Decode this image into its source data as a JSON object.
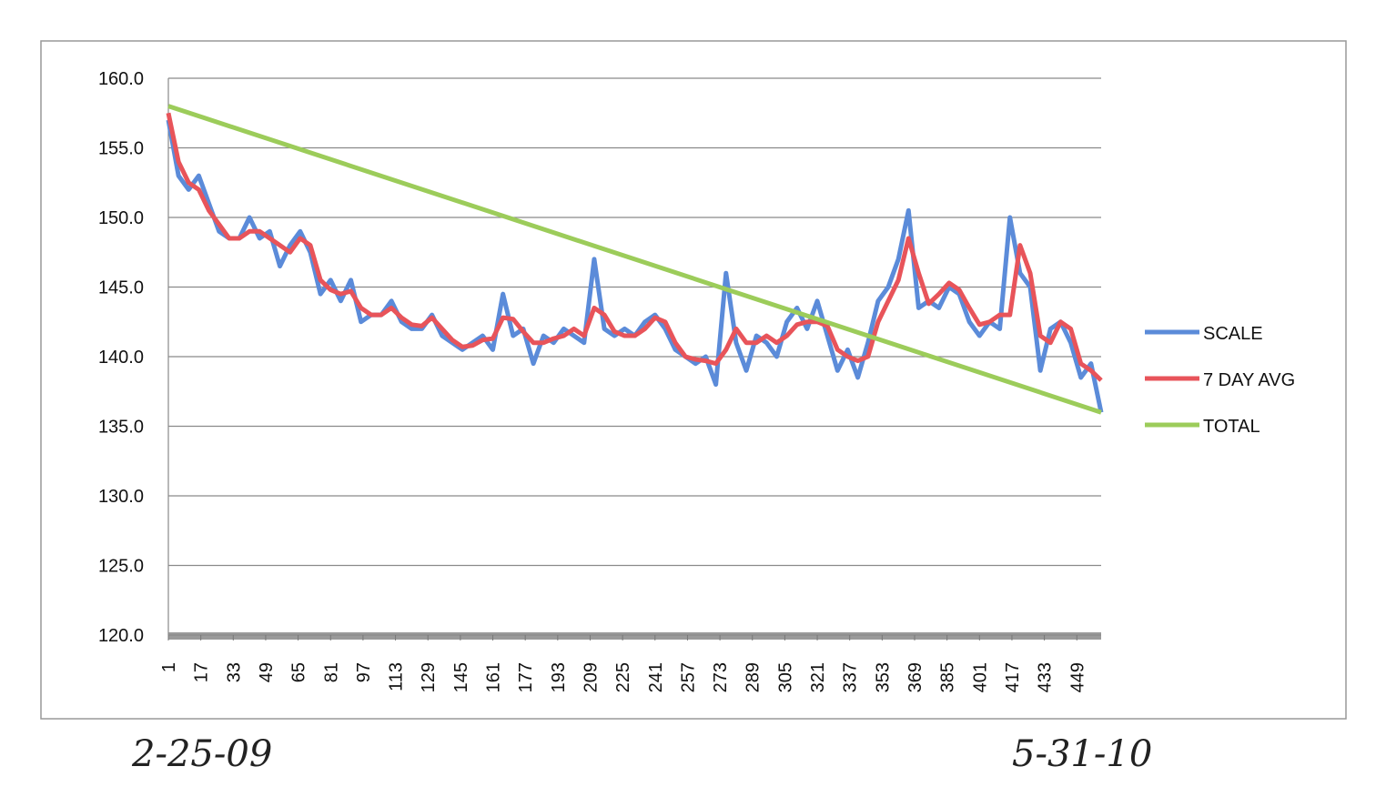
{
  "chart_data": {
    "type": "line",
    "x": [
      1,
      6,
      11,
      16,
      21,
      26,
      31,
      36,
      41,
      46,
      51,
      56,
      61,
      66,
      71,
      76,
      81,
      86,
      91,
      96,
      101,
      106,
      111,
      116,
      121,
      126,
      131,
      136,
      141,
      146,
      151,
      156,
      161,
      166,
      171,
      176,
      181,
      186,
      191,
      196,
      201,
      206,
      211,
      216,
      221,
      226,
      231,
      236,
      241,
      246,
      251,
      256,
      261,
      266,
      271,
      276,
      281,
      286,
      291,
      296,
      301,
      306,
      311,
      316,
      321,
      326,
      331,
      336,
      341,
      346,
      351,
      356,
      361,
      366,
      371,
      376,
      381,
      386,
      391,
      396,
      401,
      406,
      411,
      416,
      421,
      426,
      431,
      436,
      441,
      446,
      451,
      456,
      461
    ],
    "series": [
      {
        "name": "SCALE",
        "color": "#5b8bd9",
        "values": [
          157,
          153,
          152,
          153,
          151,
          149,
          148.5,
          148.5,
          150,
          148.5,
          149,
          146.5,
          148,
          149,
          147.5,
          144.5,
          145.5,
          144,
          145.5,
          142.5,
          143,
          143,
          144,
          142.5,
          142,
          142,
          143,
          141.5,
          141,
          140.5,
          141,
          141.5,
          140.5,
          144.5,
          141.5,
          142,
          139.5,
          141.5,
          141,
          142,
          141.5,
          141,
          147,
          142,
          141.5,
          142,
          141.5,
          142.5,
          143,
          142,
          140.5,
          140,
          139.5,
          140,
          138,
          146,
          141,
          139,
          141.5,
          141,
          140,
          142.5,
          143.5,
          142,
          144,
          141.5,
          139,
          140.5,
          138.5,
          141,
          144,
          145,
          147,
          150.5,
          143.5,
          144,
          143.5,
          145,
          144.5,
          142.5,
          141.5,
          142.5,
          142,
          150,
          146,
          145,
          139,
          142,
          142.5,
          141,
          138.5,
          139.5,
          136
        ]
      },
      {
        "name": "7 DAY AVG",
        "color": "#e8545a",
        "values": [
          157.5,
          154,
          152.5,
          152,
          150.5,
          149.5,
          148.5,
          148.5,
          149,
          149,
          148.5,
          148,
          147.5,
          148.5,
          148,
          145.5,
          144.8,
          144.5,
          144.7,
          143.5,
          143,
          143,
          143.5,
          142.8,
          142.3,
          142.2,
          142.8,
          142,
          141.2,
          140.7,
          140.8,
          141.2,
          141.3,
          142.8,
          142.7,
          141.8,
          141,
          141,
          141.3,
          141.5,
          142,
          141.5,
          143.5,
          143,
          141.8,
          141.5,
          141.5,
          142,
          142.8,
          142.5,
          141,
          140,
          139.8,
          139.7,
          139.5,
          140.5,
          142,
          141,
          141,
          141.5,
          141,
          141.5,
          142.3,
          142.5,
          142.5,
          142.2,
          140.5,
          140,
          139.7,
          140,
          142.5,
          144,
          145.5,
          148.5,
          146,
          143.8,
          144.5,
          145.3,
          144.8,
          143.5,
          142.3,
          142.5,
          143,
          143,
          148,
          146,
          141.5,
          141,
          142.5,
          142,
          139.5,
          139,
          138.3
        ]
      },
      {
        "name": "TOTAL",
        "color": "#9ccc5a",
        "x": [
          1,
          461
        ],
        "values": [
          158,
          136
        ]
      }
    ],
    "xlim": [
      1,
      461
    ],
    "xticks": [
      1,
      17,
      33,
      49,
      65,
      81,
      97,
      113,
      129,
      145,
      161,
      177,
      193,
      209,
      225,
      241,
      257,
      273,
      289,
      305,
      321,
      337,
      353,
      369,
      385,
      401,
      417,
      433,
      449
    ],
    "ylim": [
      120,
      160
    ],
    "yticks": [
      {
        "value": 120,
        "label": "120.0"
      },
      {
        "value": 125,
        "label": "125.0"
      },
      {
        "value": 130,
        "label": "130.0"
      },
      {
        "value": 135,
        "label": "135.0"
      },
      {
        "value": 140,
        "label": "140.0"
      },
      {
        "value": 145,
        "label": "145.0"
      },
      {
        "value": 150,
        "label": "150.0"
      },
      {
        "value": 155,
        "label": "155.0"
      },
      {
        "value": 160,
        "label": "160.0"
      }
    ],
    "grid": true,
    "legend": "right",
    "annotations": [
      "2-25-09",
      "5-31-10"
    ]
  }
}
